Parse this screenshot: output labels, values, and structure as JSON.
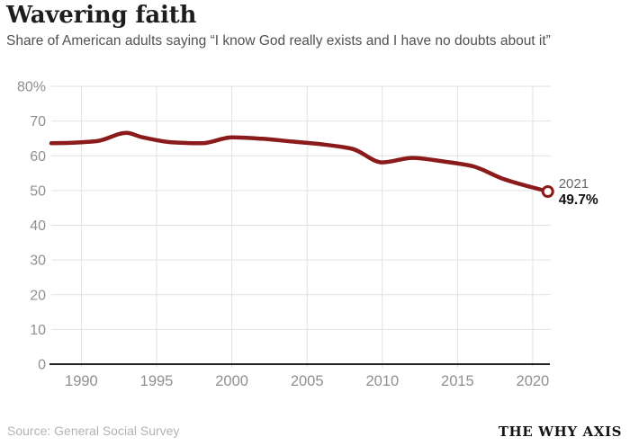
{
  "header": {
    "title": "Wavering faith",
    "subtitle": "Share of American adults saying “I know God really exists and I have no doubts about it”"
  },
  "footer": {
    "source": "Source: General Social Survey",
    "brand": "THE WHY AXIS"
  },
  "colors": {
    "background": "#ffffff",
    "line": "#8b1a1a",
    "marker_fill": "#ffffff",
    "grid": "#e2e2e2",
    "axis": "#222222",
    "tick_label": "#8f8f8f",
    "annotation_year": "#666666",
    "annotation_value": "#111111"
  },
  "chart_data": {
    "type": "line",
    "title": "Wavering faith",
    "subtitle": "Share of American adults saying “I know God really exists and I have no doubts about it”",
    "xlabel": "",
    "ylabel": "",
    "x": [
      1988,
      1989,
      1990,
      1991,
      1993,
      1994,
      1996,
      1998,
      2000,
      2002,
      2004,
      2006,
      2008,
      2010,
      2012,
      2014,
      2016,
      2018,
      2021
    ],
    "values": [
      63.6,
      63.7,
      63.9,
      64.2,
      66.6,
      65.4,
      63.9,
      63.6,
      65.3,
      64.9,
      64.1,
      63.3,
      62.0,
      58.1,
      59.4,
      58.4,
      57.0,
      53.4,
      49.7
    ],
    "xlim": [
      1988,
      2021.2
    ],
    "ylim": [
      0,
      80
    ],
    "grid": true,
    "legend": "none",
    "yticks": [
      {
        "value": 80,
        "label": "80%"
      },
      {
        "value": 70,
        "label": "70"
      },
      {
        "value": 60,
        "label": "60"
      },
      {
        "value": 50,
        "label": "50"
      },
      {
        "value": 40,
        "label": "40"
      },
      {
        "value": 30,
        "label": "30"
      },
      {
        "value": 20,
        "label": "20"
      },
      {
        "value": 10,
        "label": "10"
      },
      {
        "value": 0,
        "label": "0"
      }
    ],
    "xticks": [
      {
        "value": 1990,
        "label": "1990"
      },
      {
        "value": 1995,
        "label": "1995"
      },
      {
        "value": 2000,
        "label": "2000"
      },
      {
        "value": 2005,
        "label": "2005"
      },
      {
        "value": 2010,
        "label": "2010"
      },
      {
        "value": 2015,
        "label": "2015"
      },
      {
        "value": 2020,
        "label": "2020"
      }
    ],
    "end_annotation": {
      "year_label": "2021",
      "value_label": "49.7%",
      "x": 2021,
      "value": 49.7
    }
  }
}
